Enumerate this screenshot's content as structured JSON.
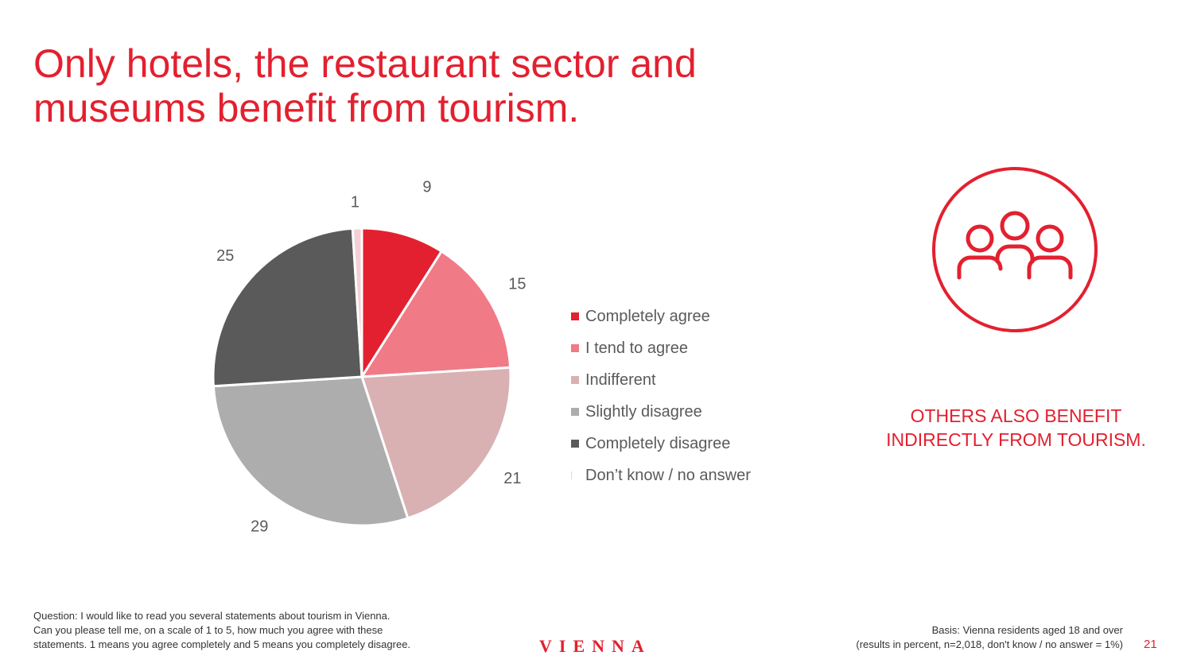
{
  "slide": {
    "title_lines": [
      "Only hotels, the restaurant sector and",
      "museums benefit from tourism."
    ],
    "aside_lines": [
      "OTHERS ALSO BENEFIT",
      "INDIRECTLY FROM TOURISM."
    ],
    "question_lines": [
      "Question: I would like to read you several statements about tourism in Vienna.",
      "Can you please tell me, on a scale of 1 to 5, how much you agree with these",
      "statements. 1 means you agree completely and 5 means you completely disagree."
    ],
    "basis_lines": [
      "Basis: Vienna residents aged 18 and over",
      "(results in percent, n=2,018, don't know / no answer = 1%)"
    ],
    "logo": "VIENNA",
    "page_number": "21",
    "icon": "people-group-icon"
  },
  "chart_data": {
    "type": "pie",
    "title": "",
    "legend_position": "right",
    "series": [
      {
        "name": "Completely agree",
        "value": 9,
        "color": "#e3202f"
      },
      {
        "name": "I tend to agree",
        "value": 15,
        "color": "#f07a86"
      },
      {
        "name": "Indifferent",
        "value": 21,
        "color": "#d9b1b3"
      },
      {
        "name": "Slightly disagree",
        "value": 29,
        "color": "#adadad"
      },
      {
        "name": "Completely disagree",
        "value": 25,
        "color": "#5a5a5a"
      },
      {
        "name": "Don’t know / no answer",
        "value": 1,
        "color": "#f4d0d4"
      }
    ]
  }
}
